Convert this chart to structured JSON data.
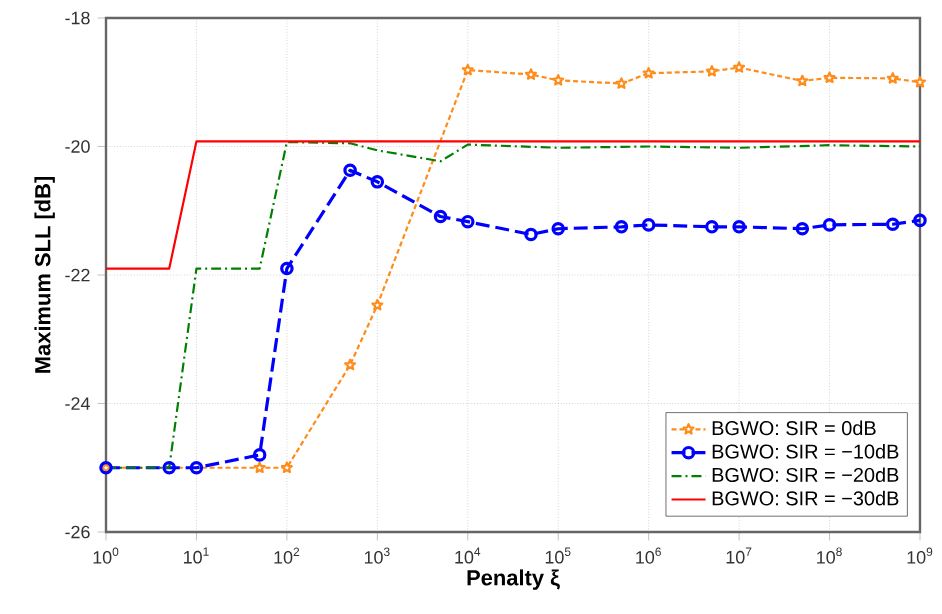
{
  "chart_data": {
    "type": "line",
    "xlabel": "Penalty ξ",
    "ylabel": "Maximum SLL [dB]",
    "log": "x",
    "xlim": [
      1,
      1000000000
    ],
    "ylim": [
      -26,
      -18
    ],
    "xticks": [
      {
        "value": 1,
        "label": "10$^{0}$"
      },
      {
        "value": 10,
        "label": "10$^{1}$"
      },
      {
        "value": 100,
        "label": "10$^{2}$"
      },
      {
        "value": 1000,
        "label": "10$^{3}$"
      },
      {
        "value": 10000,
        "label": "10$^{4}$"
      },
      {
        "value": 100000,
        "label": "10$^{5}$"
      },
      {
        "value": 1000000,
        "label": "10$^{6}$"
      },
      {
        "value": 10000000,
        "label": "10$^{7}$"
      },
      {
        "value": 100000000,
        "label": "10$^{8}$"
      },
      {
        "value": 1000000000,
        "label": "10$^{9}$"
      }
    ],
    "yticks": [
      -26,
      -24,
      -22,
      -20,
      -18
    ],
    "grid": true,
    "legend": "bottom right",
    "series": [
      {
        "name": "BGWO: SIR = 0dB",
        "color": "#ff8c1a",
        "marker": "star",
        "line_style": "dotted",
        "x": [
          1,
          50,
          100,
          500,
          1000,
          10000,
          50000,
          100000,
          500000,
          1000000,
          5000000,
          10000000,
          50000000,
          100000000,
          500000000,
          1000000000
        ],
        "values": [
          -25,
          -25,
          -25,
          -23.4,
          -22.47,
          -18.81,
          -18.88,
          -18.97,
          -19.02,
          -18.86,
          -18.83,
          -18.77,
          -18.98,
          -18.93,
          -18.94,
          -19.0
        ]
      },
      {
        "name": "BGWO: SIR = −10dB",
        "color": "#0000ff",
        "marker": "circle",
        "line_style": "dashed",
        "x": [
          1,
          5,
          10,
          50,
          100,
          500,
          1000,
          5000,
          10000,
          50000,
          100000,
          500000,
          1000000,
          5000000,
          10000000,
          50000000,
          100000000,
          500000000,
          1000000000
        ],
        "values": [
          -25,
          -25,
          -25,
          -24.8,
          -21.9,
          -20.37,
          -20.55,
          -21.09,
          -21.17,
          -21.37,
          -21.28,
          -21.25,
          -21.22,
          -21.25,
          -21.25,
          -21.28,
          -21.22,
          -21.21,
          -21.15
        ]
      },
      {
        "name": "BGWO: SIR = −20dB",
        "color": "#008000",
        "marker": "none",
        "line_style": "dashdot",
        "x": [
          1,
          5,
          10,
          50,
          100,
          500,
          1000,
          5000,
          10000,
          100000,
          1000000,
          10000000,
          100000000,
          1000000000
        ],
        "values": [
          -25,
          -25,
          -21.9,
          -21.9,
          -19.93,
          -19.95,
          -20.06,
          -20.23,
          -19.97,
          -20.02,
          -20.0,
          -20.02,
          -19.98,
          -20.0
        ]
      },
      {
        "name": "BGWO: SIR = −30dB",
        "color": "#ff0000",
        "marker": "none",
        "line_style": "solid",
        "x": [
          1,
          5,
          10,
          1000000000
        ],
        "values": [
          -21.9,
          -21.9,
          -19.92,
          -19.92
        ]
      }
    ]
  }
}
